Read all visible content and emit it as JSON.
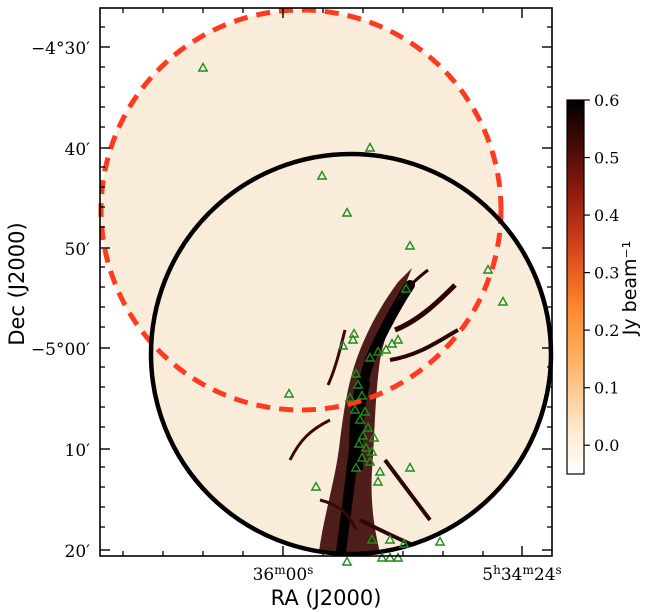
{
  "chart_data": {
    "type": "heatmap",
    "title": "",
    "xlabel": "RA (J2000)",
    "ylabel": "Dec (J2000)",
    "x_ticks": [
      "36ᵐ 00ˢ",
      "5ʰ34ᵐ24ˢ"
    ],
    "x_tick_parts": [
      {
        "label": "36m00s",
        "parts": [
          [
            "36",
            ""
          ],
          [
            "m",
            "sup"
          ],
          [
            "00",
            ""
          ],
          [
            "s",
            "sup"
          ]
        ]
      },
      {
        "label": "5h34m24s",
        "parts": [
          [
            "5",
            ""
          ],
          [
            "h",
            "sup"
          ],
          [
            "34",
            ""
          ],
          [
            "m",
            "sup"
          ],
          [
            "24",
            ""
          ],
          [
            "s",
            "sup"
          ]
        ]
      }
    ],
    "y_ticks": [
      "−4°30′",
      "40′",
      "50′",
      "−5°00′",
      "10′",
      "20′"
    ],
    "y_tick_dec_arcmin": [
      -270,
      -280,
      -290,
      -300,
      -310,
      -320
    ],
    "colorbar": {
      "label": "Jy beam⁻¹",
      "min": -0.05,
      "max": 0.6,
      "ticks": [
        "0.6",
        "0.5",
        "0.4",
        "0.3",
        "0.2",
        "0.1",
        "0.0"
      ],
      "tick_values": [
        0.6,
        0.5,
        0.4,
        0.3,
        0.2,
        0.1,
        0.0
      ],
      "colormap": [
        "#ffffff",
        "#ffd9a8",
        "#ff9a3c",
        "#e0501a",
        "#a01c0c",
        "#4a0806",
        "#000000"
      ]
    },
    "regions": [
      {
        "shape": "circle",
        "style": "dashed",
        "color": "#ff3a1f"
      },
      {
        "shape": "circle",
        "style": "solid",
        "color": "#000000"
      }
    ],
    "sources": {
      "marker": "triangle",
      "color": "#1e8c1e"
    },
    "grid": false
  }
}
